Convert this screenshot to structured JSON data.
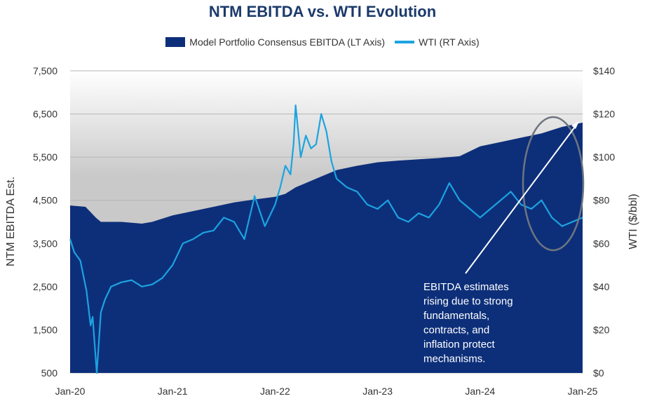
{
  "chart_data": {
    "type": "area+line",
    "title": "NTM EBITDA vs. WTI Evolution",
    "left_axis": {
      "label": "NTM EBITDA Est.",
      "min": 500,
      "max": 7500,
      "ticks": [
        "7,500",
        "6,500",
        "5,500",
        "4,500",
        "3,500",
        "2,500",
        "1,500",
        "500"
      ],
      "tick_values": [
        7500,
        6500,
        5500,
        4500,
        3500,
        2500,
        1500,
        500
      ]
    },
    "right_axis": {
      "label": "WTI ($/bbl)",
      "min": 0,
      "max": 140,
      "ticks": [
        "$140",
        "$120",
        "$100",
        "$80",
        "$60",
        "$40",
        "$20",
        "$0"
      ],
      "tick_values": [
        140,
        120,
        100,
        80,
        60,
        40,
        20,
        0
      ]
    },
    "x_axis": {
      "min": 2020.0,
      "max": 2025.0,
      "ticks": [
        "Jan-20",
        "Jan-21",
        "Jan-22",
        "Jan-23",
        "Jan-24",
        "Jan-25"
      ],
      "tick_values": [
        2020,
        2021,
        2022,
        2023,
        2024,
        2025
      ]
    },
    "series": [
      {
        "name": "Model Portfolio Consensus EBITDA (LT Axis)",
        "axis": "left",
        "color": "#0d2f7a",
        "x": [
          2020.0,
          2020.15,
          2020.25,
          2020.3,
          2020.5,
          2020.7,
          2020.8,
          2021.0,
          2021.2,
          2021.4,
          2021.6,
          2021.8,
          2022.0,
          2022.1,
          2022.2,
          2022.3,
          2022.4,
          2022.5,
          2022.6,
          2022.8,
          2023.0,
          2023.2,
          2023.4,
          2023.6,
          2023.8,
          2024.0,
          2024.2,
          2024.4,
          2024.6,
          2024.8,
          2025.0
        ],
        "values": [
          4380,
          4350,
          4100,
          4000,
          4000,
          3960,
          4000,
          4150,
          4250,
          4350,
          4450,
          4520,
          4580,
          4650,
          4800,
          4900,
          5000,
          5100,
          5200,
          5300,
          5380,
          5420,
          5450,
          5480,
          5520,
          5750,
          5850,
          5950,
          6050,
          6200,
          6300
        ]
      },
      {
        "name": "WTI (RT Axis)",
        "axis": "right",
        "color": "#1ca3e0",
        "x": [
          2020.0,
          2020.04,
          2020.1,
          2020.16,
          2020.2,
          2020.22,
          2020.26,
          2020.3,
          2020.34,
          2020.4,
          2020.5,
          2020.6,
          2020.7,
          2020.8,
          2020.9,
          2021.0,
          2021.1,
          2021.2,
          2021.3,
          2021.4,
          2021.5,
          2021.6,
          2021.7,
          2021.8,
          2021.9,
          2022.0,
          2022.05,
          2022.1,
          2022.15,
          2022.18,
          2022.2,
          2022.25,
          2022.3,
          2022.35,
          2022.4,
          2022.45,
          2022.5,
          2022.55,
          2022.6,
          2022.7,
          2022.8,
          2022.9,
          2023.0,
          2023.1,
          2023.2,
          2023.3,
          2023.4,
          2023.5,
          2023.6,
          2023.7,
          2023.8,
          2023.9,
          2024.0,
          2024.1,
          2024.2,
          2024.3,
          2024.4,
          2024.5,
          2024.6,
          2024.7,
          2024.8,
          2024.9,
          2025.0
        ],
        "values": [
          62,
          56,
          52,
          38,
          22,
          26,
          0,
          28,
          34,
          40,
          42,
          43,
          40,
          41,
          44,
          50,
          60,
          62,
          65,
          66,
          72,
          70,
          62,
          82,
          68,
          78,
          86,
          96,
          92,
          106,
          124,
          100,
          110,
          104,
          106,
          120,
          112,
          98,
          90,
          86,
          84,
          78,
          76,
          80,
          72,
          70,
          74,
          72,
          78,
          88,
          80,
          76,
          72,
          76,
          80,
          84,
          78,
          76,
          80,
          72,
          68,
          70,
          72
        ]
      }
    ],
    "annotation": {
      "lines": [
        "EBITDA estimates",
        "rising due to strong",
        "fundamentals,",
        "contracts, and",
        "inflation protect",
        "mechanisms."
      ]
    },
    "highlight": "ellipse around late-2024 to Jan-25 data",
    "legend_position": "top-center"
  }
}
